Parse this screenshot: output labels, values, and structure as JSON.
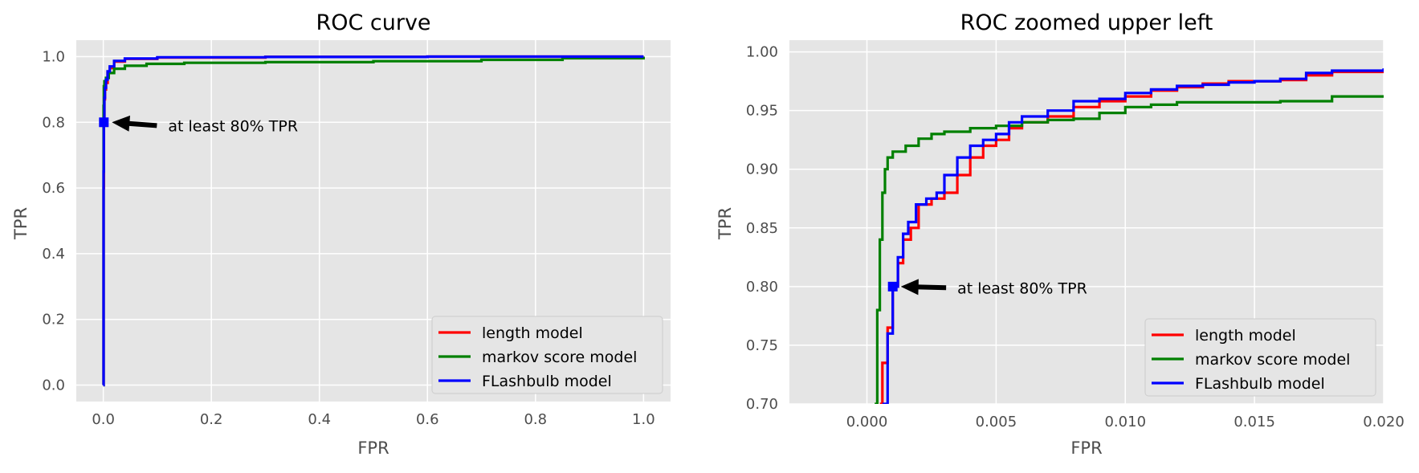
{
  "colors": {
    "plot_bg": "#e5e5e5",
    "grid": "#ffffff",
    "tick_text": "#4d4d4d",
    "length_model": "#ff0000",
    "markov_model": "#008000",
    "flashbulb_model": "#0000ff",
    "marker": "#0000ff",
    "arrow": "#000000"
  },
  "chart_data": [
    {
      "type": "line",
      "title": "ROC curve",
      "xlabel": "FPR",
      "ylabel": "TPR",
      "xlim": [
        -0.05,
        1.05
      ],
      "ylim": [
        -0.05,
        1.05
      ],
      "xticks": [
        0.0,
        0.2,
        0.4,
        0.6,
        0.8,
        1.0
      ],
      "xtick_labels": [
        "0.0",
        "0.2",
        "0.4",
        "0.6",
        "0.8",
        "1.0"
      ],
      "yticks": [
        0.0,
        0.2,
        0.4,
        0.6,
        0.8,
        1.0
      ],
      "ytick_labels": [
        "0.0",
        "0.2",
        "0.4",
        "0.6",
        "0.8",
        "1.0"
      ],
      "grid": true,
      "legend_position": "lower-right",
      "series": [
        {
          "name": "length model",
          "color": "#ff0000",
          "x": [
            0,
            0.0005,
            0.001,
            0.002,
            0.003,
            0.005,
            0.008,
            0.012,
            0.02,
            0.04,
            0.1,
            0.3,
            0.6,
            1.0
          ],
          "y": [
            0,
            0.6,
            0.8,
            0.87,
            0.9,
            0.92,
            0.95,
            0.965,
            0.985,
            0.993,
            0.997,
            0.999,
            1.0,
            1.0
          ]
        },
        {
          "name": "markov score model",
          "color": "#008000",
          "x": [
            0,
            0.0005,
            0.001,
            0.002,
            0.005,
            0.01,
            0.02,
            0.04,
            0.08,
            0.15,
            0.3,
            0.5,
            0.7,
            0.85,
            1.0
          ],
          "y": [
            0,
            0.85,
            0.91,
            0.925,
            0.935,
            0.95,
            0.963,
            0.972,
            0.978,
            0.981,
            0.983,
            0.986,
            0.99,
            0.995,
            1.0
          ]
        },
        {
          "name": "FLashbulb model",
          "color": "#0000ff",
          "x": [
            0,
            0.0005,
            0.001,
            0.002,
            0.003,
            0.005,
            0.008,
            0.012,
            0.02,
            0.04,
            0.1,
            0.3,
            0.6,
            1.0
          ],
          "y": [
            0,
            0.65,
            0.8,
            0.875,
            0.905,
            0.93,
            0.955,
            0.97,
            0.987,
            0.994,
            0.998,
            0.999,
            1.0,
            1.0
          ]
        }
      ],
      "marker": {
        "x": 0.001,
        "y": 0.8
      },
      "annotation": {
        "text": "at least 80% TPR",
        "x": 0.12,
        "y": 0.79
      }
    },
    {
      "type": "line",
      "title": "ROC zoomed upper left",
      "xlabel": "FPR",
      "ylabel": "TPR",
      "xlim": [
        -0.003,
        0.02
      ],
      "ylim": [
        0.7,
        1.01
      ],
      "xticks": [
        0.0,
        0.005,
        0.01,
        0.015,
        0.02
      ],
      "xtick_labels": [
        "0.000",
        "0.005",
        "0.010",
        "0.015",
        "0.020"
      ],
      "yticks": [
        0.7,
        0.75,
        0.8,
        0.85,
        0.9,
        0.95,
        1.0
      ],
      "ytick_labels": [
        "0.70",
        "0.75",
        "0.80",
        "0.85",
        "0.90",
        "0.95",
        "1.00"
      ],
      "grid": true,
      "legend_position": "lower-right",
      "series": [
        {
          "name": "length model",
          "color": "#ff0000",
          "x": [
            0.0005,
            0.0006,
            0.0008,
            0.001,
            0.0012,
            0.0014,
            0.0017,
            0.002,
            0.0025,
            0.003,
            0.0035,
            0.004,
            0.0045,
            0.005,
            0.0055,
            0.006,
            0.007,
            0.008,
            0.009,
            0.01,
            0.011,
            0.012,
            0.013,
            0.014,
            0.015,
            0.016,
            0.017,
            0.018,
            0.02
          ],
          "y": [
            0.7,
            0.735,
            0.765,
            0.8,
            0.82,
            0.84,
            0.85,
            0.87,
            0.875,
            0.88,
            0.895,
            0.91,
            0.92,
            0.925,
            0.935,
            0.94,
            0.945,
            0.953,
            0.958,
            0.962,
            0.967,
            0.97,
            0.973,
            0.975,
            0.975,
            0.976,
            0.98,
            0.983,
            0.984
          ]
        },
        {
          "name": "markov score model",
          "color": "#008000",
          "x": [
            0.0003,
            0.0004,
            0.0005,
            0.0006,
            0.0007,
            0.0008,
            0.001,
            0.0015,
            0.002,
            0.0025,
            0.003,
            0.004,
            0.005,
            0.006,
            0.007,
            0.008,
            0.009,
            0.01,
            0.011,
            0.012,
            0.014,
            0.016,
            0.018,
            0.02
          ],
          "y": [
            0.7,
            0.78,
            0.84,
            0.88,
            0.9,
            0.91,
            0.915,
            0.92,
            0.926,
            0.93,
            0.932,
            0.935,
            0.937,
            0.94,
            0.942,
            0.943,
            0.948,
            0.953,
            0.955,
            0.957,
            0.957,
            0.958,
            0.962,
            0.963
          ]
        },
        {
          "name": "FLashbulb model",
          "color": "#0000ff",
          "x": [
            0.0006,
            0.0008,
            0.001,
            0.0012,
            0.0014,
            0.0016,
            0.0019,
            0.0023,
            0.0027,
            0.003,
            0.0035,
            0.004,
            0.0045,
            0.005,
            0.0055,
            0.006,
            0.007,
            0.008,
            0.009,
            0.01,
            0.011,
            0.012,
            0.013,
            0.014,
            0.015,
            0.016,
            0.017,
            0.018,
            0.02
          ],
          "y": [
            0.7,
            0.76,
            0.8,
            0.825,
            0.845,
            0.855,
            0.87,
            0.875,
            0.88,
            0.895,
            0.91,
            0.92,
            0.925,
            0.93,
            0.94,
            0.945,
            0.95,
            0.958,
            0.96,
            0.965,
            0.968,
            0.971,
            0.972,
            0.974,
            0.975,
            0.977,
            0.982,
            0.984,
            0.986
          ]
        }
      ],
      "marker": {
        "x": 0.001,
        "y": 0.8
      },
      "annotation": {
        "text": "at least 80% TPR",
        "x": 0.0035,
        "y": 0.799
      }
    }
  ]
}
